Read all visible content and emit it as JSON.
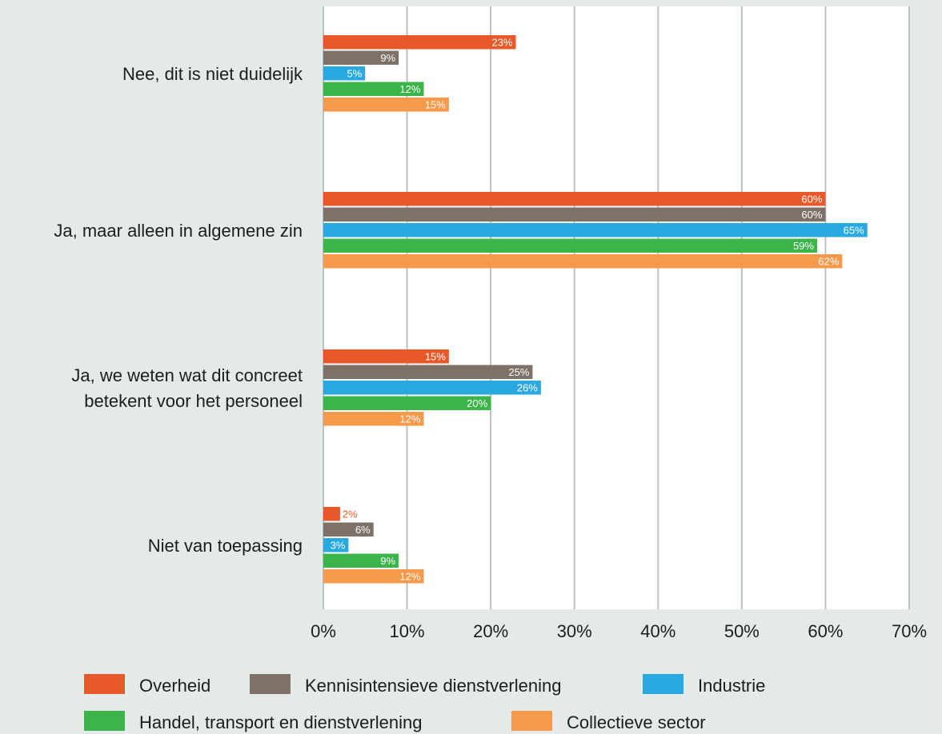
{
  "chart_data": {
    "type": "bar",
    "orientation": "horizontal",
    "categories": [
      [
        "Nee, dit is niet duidelijk"
      ],
      [
        "Ja, maar alleen in algemene zin"
      ],
      [
        "Ja, we weten wat dit concreet",
        "betekent voor het personeel"
      ],
      [
        "Niet van toepassing"
      ]
    ],
    "series": [
      {
        "name": "Overheid",
        "color": "#e8592a",
        "values": [
          23,
          60,
          15,
          2
        ],
        "labels": [
          "23%",
          "60%",
          "15%",
          "2%"
        ]
      },
      {
        "name": "Kennisintensieve dienstverlening",
        "color": "#7d7168",
        "values": [
          9,
          60,
          25,
          6
        ],
        "labels": [
          "9%",
          "60%",
          "25%",
          "6%"
        ]
      },
      {
        "name": "Industrie",
        "color": "#2aa9e0",
        "values": [
          5,
          65,
          26,
          3
        ],
        "labels": [
          "5%",
          "65%",
          "26%",
          "3%"
        ]
      },
      {
        "name": "Handel, transport en dienstverlening",
        "color": "#3bb44a",
        "values": [
          12,
          59,
          20,
          9
        ],
        "labels": [
          "12%",
          "59%",
          "20%",
          "9%"
        ]
      },
      {
        "name": "Collectieve sector",
        "color": "#f5994a",
        "values": [
          15,
          62,
          12,
          12
        ],
        "labels": [
          "15%",
          "62%",
          "12%",
          "12%"
        ]
      }
    ],
    "xlim": [
      0,
      70
    ],
    "ticks": [
      "0%",
      "10%",
      "20%",
      "30%",
      "40%",
      "50%",
      "60%",
      "70%"
    ],
    "grid": true,
    "plot_background": "#ffffff",
    "page_background": "#e4e9ea",
    "legend_position": "bottom"
  }
}
